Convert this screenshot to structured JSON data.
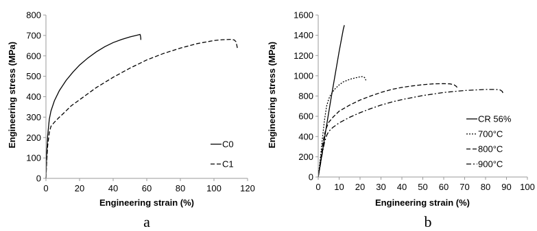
{
  "chart_data": [
    {
      "type": "line",
      "panel_label": "a",
      "xlabel": "Engineering strain (%)",
      "ylabel": "Engineering stress (MPa)",
      "xlim": [
        0,
        120
      ],
      "ylim": [
        0,
        800
      ],
      "x_ticks": [
        0,
        20,
        40,
        60,
        80,
        100,
        120
      ],
      "y_ticks": [
        0,
        100,
        200,
        300,
        400,
        500,
        600,
        700,
        800
      ],
      "grid": false,
      "legend_position": "bottom-right",
      "series": [
        {
          "name": "C0",
          "dash": "solid",
          "x": [
            0,
            0.5,
            1,
            2,
            3,
            5,
            8,
            12,
            16,
            20,
            25,
            30,
            35,
            40,
            45,
            50,
            53,
            55,
            56,
            56.2,
            56.4,
            56.5
          ],
          "y": [
            0,
            130,
            210,
            290,
            330,
            380,
            430,
            480,
            520,
            555,
            590,
            620,
            645,
            665,
            680,
            693,
            699,
            703,
            705,
            700,
            690,
            678
          ]
        },
        {
          "name": "C1",
          "dash": "dashed",
          "x": [
            0,
            0.5,
            1,
            2,
            3,
            4,
            5,
            8,
            10,
            15,
            20,
            25,
            30,
            40,
            50,
            60,
            70,
            80,
            90,
            100,
            105,
            110,
            112,
            113,
            113.5,
            114
          ],
          "y": [
            0,
            90,
            160,
            225,
            255,
            265,
            275,
            300,
            315,
            355,
            385,
            415,
            445,
            495,
            540,
            580,
            612,
            638,
            660,
            675,
            679,
            681,
            678,
            670,
            655,
            635
          ]
        }
      ]
    },
    {
      "type": "line",
      "panel_label": "b",
      "xlabel": "Engineering strain (%)",
      "ylabel": "Engineering stress (MPa)",
      "xlim": [
        0,
        100
      ],
      "ylim": [
        0,
        1600
      ],
      "x_ticks": [
        0,
        10,
        20,
        30,
        40,
        50,
        60,
        70,
        80,
        90,
        100
      ],
      "y_ticks": [
        0,
        200,
        400,
        600,
        800,
        1000,
        1200,
        1400,
        1600
      ],
      "grid": false,
      "legend_position": "bottom-right",
      "series": [
        {
          "name": "CR 56%",
          "dash": "solid",
          "x": [
            0,
            2,
            4,
            6,
            8,
            10,
            12,
            12.5
          ],
          "y": [
            0,
            250,
            510,
            760,
            1000,
            1240,
            1460,
            1500
          ]
        },
        {
          "name": "700°C",
          "dash": "dotted",
          "x": [
            0,
            1,
            2,
            3,
            4,
            5,
            6,
            8,
            10,
            12,
            15,
            18,
            20,
            21,
            22,
            22.5,
            22.8
          ],
          "y": [
            0,
            180,
            380,
            560,
            700,
            770,
            815,
            870,
            910,
            940,
            965,
            980,
            990,
            992,
            985,
            975,
            955
          ]
        },
        {
          "name": "800°C",
          "dash": "dashed",
          "x": [
            0,
            1,
            2,
            3,
            4,
            5,
            7,
            10,
            15,
            20,
            25,
            30,
            35,
            40,
            45,
            50,
            55,
            60,
            63,
            65,
            66,
            67
          ],
          "y": [
            0,
            150,
            300,
            420,
            490,
            540,
            590,
            650,
            710,
            760,
            800,
            835,
            865,
            885,
            900,
            912,
            920,
            922,
            920,
            910,
            895,
            870
          ]
        },
        {
          "name": "900°C",
          "dash": "dashdot",
          "x": [
            0,
            1,
            2,
            3,
            4,
            5,
            7,
            10,
            15,
            20,
            25,
            30,
            35,
            40,
            50,
            60,
            70,
            80,
            85,
            87,
            88,
            88.5
          ],
          "y": [
            0,
            120,
            240,
            340,
            410,
            450,
            490,
            535,
            590,
            635,
            675,
            710,
            740,
            765,
            805,
            835,
            855,
            865,
            865,
            860,
            845,
            820
          ]
        }
      ]
    }
  ]
}
